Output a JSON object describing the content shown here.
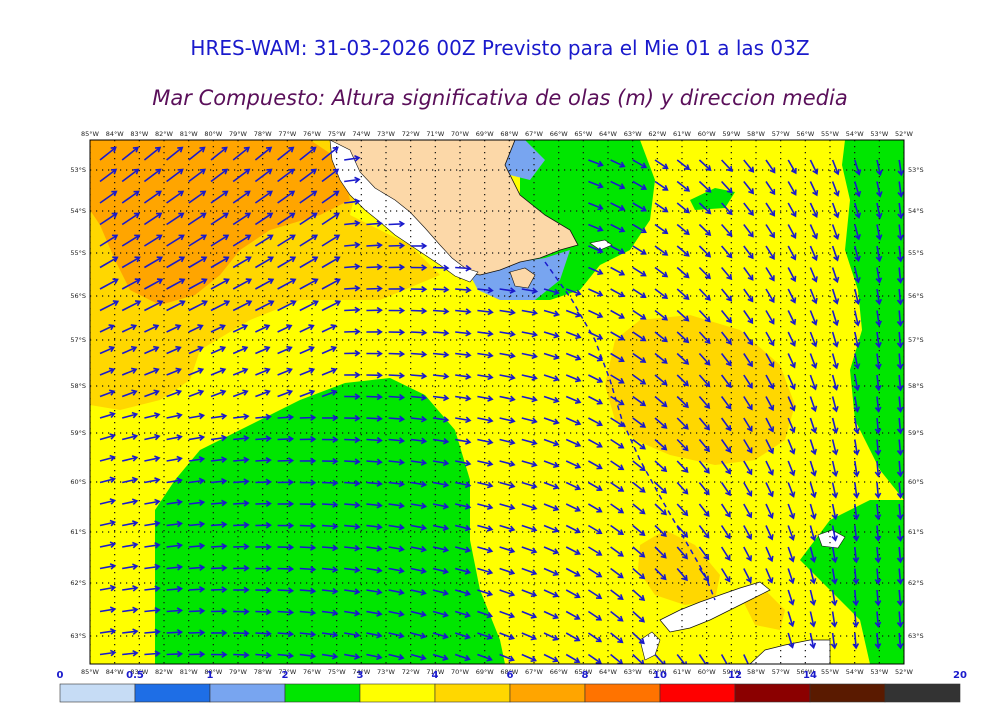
{
  "title": "HRES-WAM: 31-03-2026 00Z Previsto para el Mie 01 a las 03Z",
  "subtitle": "Mar Compuesto: Altura significativa de olas (m) y direccion media",
  "map": {
    "lon_labels": [
      "85°W",
      "84°W",
      "83°W",
      "82°W",
      "81°W",
      "80°W",
      "79°W",
      "78°W",
      "77°W",
      "76°W",
      "75°W",
      "74°W",
      "73°W",
      "72°W",
      "71°W",
      "70°W",
      "69°W",
      "68°W",
      "67°W",
      "66°W",
      "65°W",
      "64°W",
      "63°W",
      "62°W",
      "61°W",
      "60°W",
      "59°W",
      "58°W",
      "57°W",
      "56°W",
      "55°W",
      "54°W",
      "53°W",
      "52°W"
    ],
    "lat_labels": [
      "53°S",
      "54°S",
      "55°S",
      "56°S",
      "57°S",
      "58°S",
      "59°S",
      "60°S",
      "61°S",
      "62°S",
      "63°S"
    ],
    "colors": {
      "sea_0_5": "#c6dcf5",
      "sea_0_5_1": "#1e6ee6",
      "sea_1_2": "#78a5f0",
      "sea_2_3": "#00e600",
      "sea_3_4": "#ffff00",
      "sea_4_6": "#ffd700",
      "sea_6_8": "#ffa500",
      "sea_8_10": "#ff7300",
      "land": "#fcd8a8",
      "arrow": "#1a1acc",
      "track": "#1a1acc"
    }
  },
  "colorbar": {
    "ticks": [
      "0",
      "0.5",
      "1",
      "2",
      "3",
      "4",
      "6",
      "8",
      "10",
      "12",
      "14",
      "20"
    ],
    "colors": [
      "#c6dcf5",
      "#1e6ee6",
      "#78a5f0",
      "#00e600",
      "#ffff00",
      "#ffd700",
      "#ffa500",
      "#ff7300",
      "#ff0000",
      "#8b0000",
      "#5a1a00",
      "#333333"
    ]
  }
}
